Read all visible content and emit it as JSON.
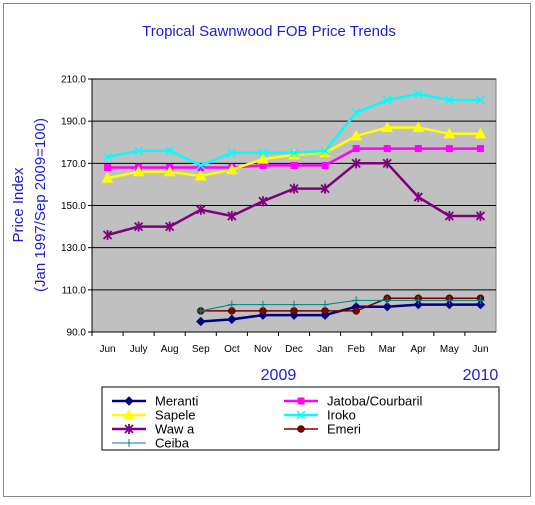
{
  "chart_data": {
    "type": "line",
    "title": "Tropical Sawnwood FOB Price Trends",
    "ylabel_line1": "Price Index",
    "ylabel_line2": "(Jan 1997/Sep 2009=100)",
    "categories": [
      "Jun",
      "July",
      "Aug",
      "Sep",
      "Oct",
      "Nov",
      "Dec",
      "Jan",
      "Feb",
      "Mar",
      "Apr",
      "May",
      "Jun"
    ],
    "year_labels": [
      {
        "label": "2009",
        "category_index": 5.5
      },
      {
        "label": "2010",
        "category_index": 12
      }
    ],
    "ylim": [
      90,
      210
    ],
    "yticks": [
      "90.0",
      "110.0",
      "130.0",
      "150.0",
      "170.0",
      "190.0",
      "210.0"
    ],
    "grid": true,
    "series": [
      {
        "name": "Meranti",
        "color": "#000080",
        "marker": "diamond",
        "values": [
          null,
          null,
          null,
          95,
          96,
          98,
          98,
          98,
          102,
          102,
          103,
          103,
          103
        ]
      },
      {
        "name": "Jatoba/Courbaril",
        "color": "#ff00ff",
        "marker": "square",
        "values": [
          168,
          168,
          168,
          168,
          168,
          169,
          169,
          169,
          177,
          177,
          177,
          177,
          177
        ]
      },
      {
        "name": "Sapele",
        "color": "#ffff00",
        "marker": "triangle",
        "values": [
          163,
          166,
          166,
          164,
          167,
          172,
          174,
          175,
          183,
          187,
          187,
          184,
          184
        ]
      },
      {
        "name": "Iroko",
        "color": "#00ffff",
        "marker": "x",
        "values": [
          173,
          176,
          176,
          169,
          175,
          175,
          175,
          176,
          194,
          200,
          203,
          200,
          200
        ]
      },
      {
        "name": "Waw a",
        "color": "#7f007f",
        "marker": "star",
        "values": [
          136,
          140,
          140,
          148,
          145,
          152,
          158,
          158,
          170,
          170,
          154,
          145,
          145
        ]
      },
      {
        "name": "Emeri",
        "color": "#800000",
        "marker": "circle",
        "values": [
          null,
          null,
          null,
          100,
          100,
          100,
          100,
          100,
          100,
          106,
          106,
          106,
          106
        ]
      },
      {
        "name": "Ceiba",
        "color": "#008080",
        "marker": "plus",
        "values": [
          null,
          null,
          null,
          100,
          103,
          103,
          103,
          103,
          105,
          105,
          105,
          105,
          105
        ]
      }
    ]
  },
  "colors": {
    "plot_background": "#c0c0c0",
    "grid": "#000000",
    "title": "#1c1cd6"
  }
}
